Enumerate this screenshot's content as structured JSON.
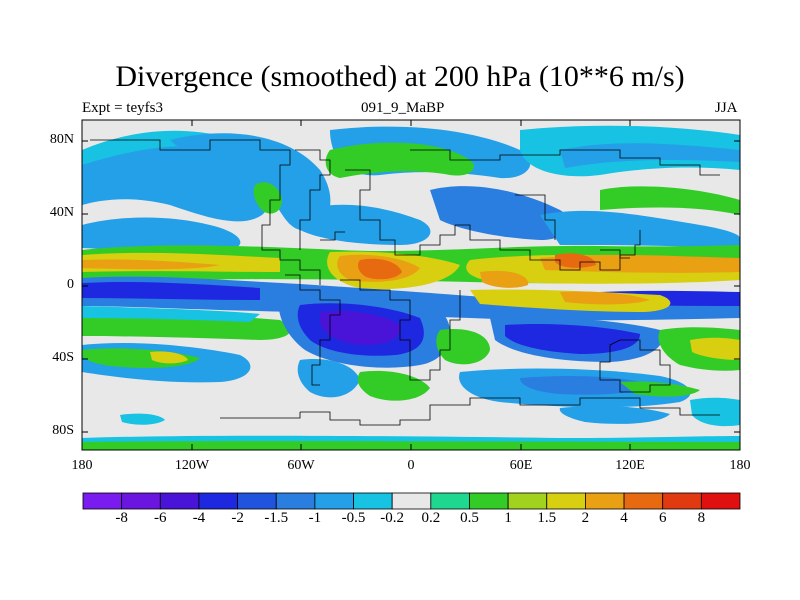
{
  "title": "Divergence (smoothed) at 200 hPa (10**6 m/s)",
  "left_label": "Expt = teyfs3",
  "center_label": "091_9_MaBP",
  "right_label": "JJA",
  "y_axis_labels": [
    "80N",
    "40N",
    "0",
    "40S",
    "80S"
  ],
  "x_axis_labels": [
    "180",
    "120W",
    "60W",
    "0",
    "60E",
    "120E",
    "180"
  ],
  "colorbar": {
    "labels": [
      "-8",
      "-6",
      "-4",
      "-2",
      "-1.5",
      "-1",
      "-0.5",
      "-0.2",
      "0.2",
      "0.5",
      "1",
      "1.5",
      "2",
      "4",
      "6",
      "8"
    ],
    "colors": [
      "#7a1bf0",
      "#6a16e0",
      "#4a14d8",
      "#1e28e0",
      "#2154de",
      "#2a7ee0",
      "#24a0e8",
      "#18c2e2",
      "#e8e8e8",
      "#1fd890",
      "#33cc26",
      "#a0d21e",
      "#d8cf10",
      "#e9a012",
      "#e86a10",
      "#e23a10",
      "#e01010"
    ]
  }
}
